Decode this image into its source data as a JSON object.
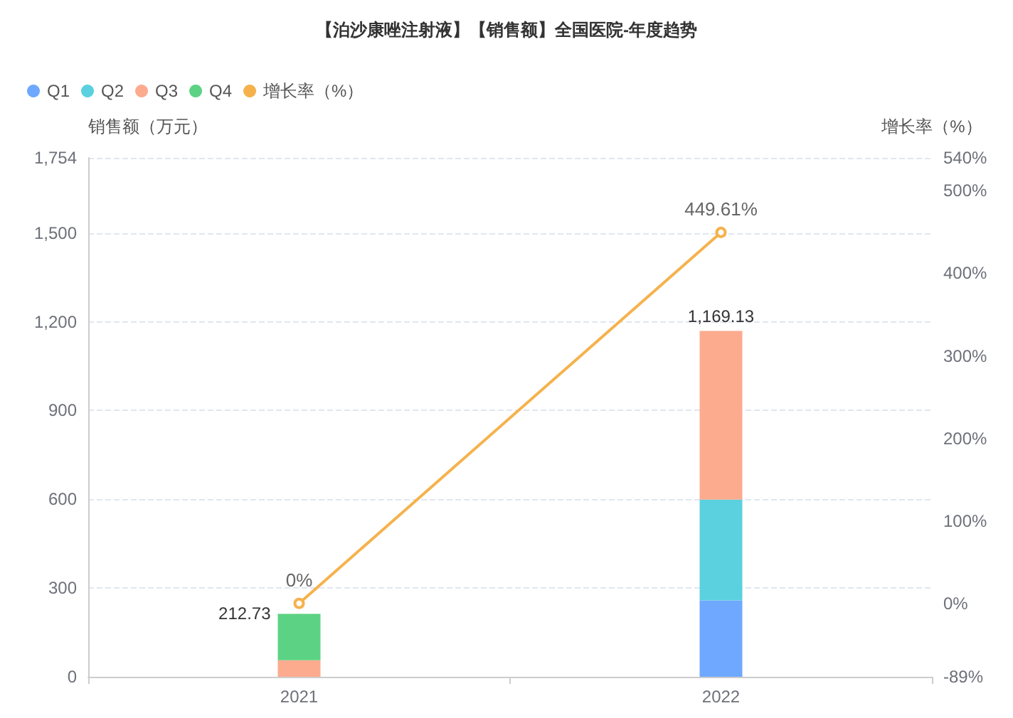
{
  "chart_data": {
    "type": "bar",
    "title": "【泊沙康唑注射液】【销售额】全国医院-年度趋势",
    "ylabel": "销售额（万元）",
    "y2label": "增长率（%）",
    "categories": [
      "2021",
      "2022"
    ],
    "series": [
      {
        "name": "Q1",
        "color": "#6fa8ff",
        "values": [
          null,
          258
        ]
      },
      {
        "name": "Q2",
        "color": "#5bd1df",
        "values": [
          null,
          341
        ]
      },
      {
        "name": "Q3",
        "color": "#fdab8f",
        "values": [
          56,
          570.13
        ]
      },
      {
        "name": "Q4",
        "color": "#5cd384",
        "values": [
          156.73,
          null
        ]
      },
      {
        "name": "增长率（%）",
        "type": "line",
        "axis": "y2",
        "color": "#f5b24c",
        "values": [
          0,
          449.61
        ],
        "value_labels": [
          "0%",
          "449.61%"
        ]
      }
    ],
    "stacked": true,
    "totals": [
      "212.73",
      "1,169.13"
    ],
    "ylim": [
      0,
      1754
    ],
    "yticks": [
      0,
      300,
      600,
      900,
      {
        "value": 1200,
        "label": "1,200"
      },
      {
        "value": 1500,
        "label": "1,500"
      },
      {
        "value": 1754,
        "label": "1,754"
      }
    ],
    "y2lim": [
      -89,
      540
    ],
    "y2ticks": [
      {
        "value": -89,
        "label": "-89%"
      },
      {
        "value": 0,
        "label": "0%"
      },
      {
        "value": 100,
        "label": "100%"
      },
      {
        "value": 200,
        "label": "200%"
      },
      {
        "value": 300,
        "label": "300%"
      },
      {
        "value": 400,
        "label": "400%"
      },
      {
        "value": 500,
        "label": "500%"
      },
      {
        "value": 540,
        "label": "540%"
      }
    ],
    "grid": "y",
    "legend": "top left",
    "marker": "circle"
  }
}
